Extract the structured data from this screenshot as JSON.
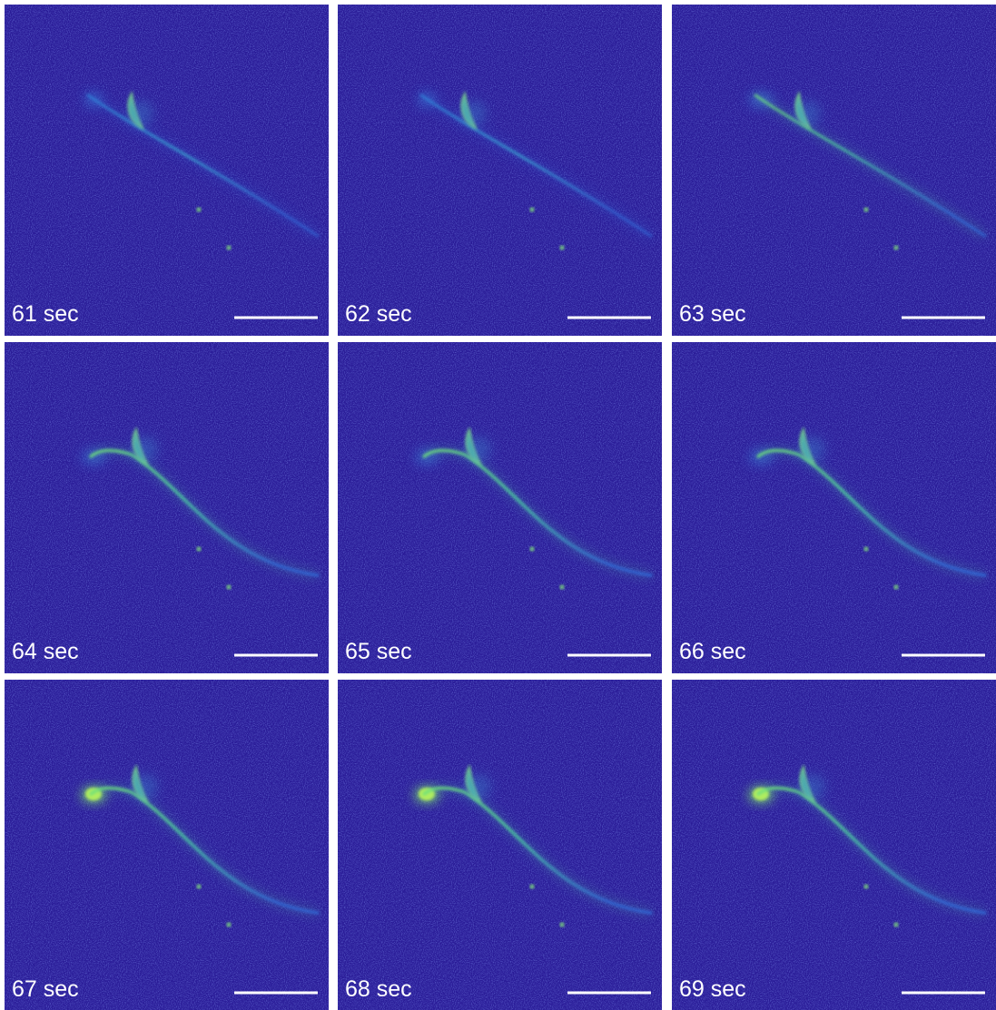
{
  "panels": [
    {
      "label": "61 sec"
    },
    {
      "label": "62 sec"
    },
    {
      "label": "63 sec"
    },
    {
      "label": "64 sec"
    },
    {
      "label": "65 sec"
    },
    {
      "label": "66 sec"
    },
    {
      "label": "67 sec"
    },
    {
      "label": "68 sec"
    },
    {
      "label": "69 sec"
    }
  ]
}
